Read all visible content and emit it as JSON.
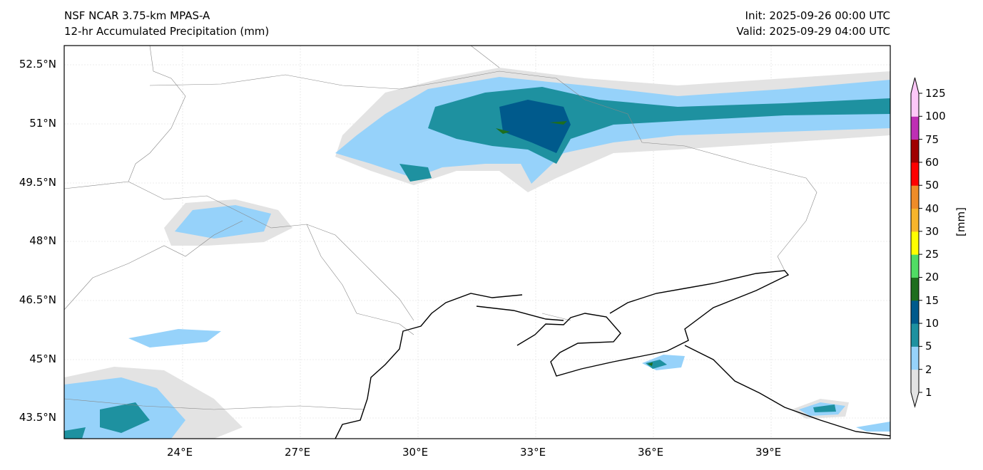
{
  "header": {
    "title_line1": "NSF NCAR 3.75-km MPAS-A",
    "title_line2": "12-hr Accumulated Precipitation (mm)",
    "init": "Init: 2025-09-26 00:00 UTC",
    "valid": "Valid: 2025-09-29 04:00 UTC"
  },
  "map": {
    "lat_ticks": [
      "52.5°N",
      "51°N",
      "49.5°N",
      "48°N",
      "46.5°N",
      "45°N",
      "43.5°N"
    ],
    "lon_ticks": [
      "24°E",
      "27°E",
      "30°E",
      "33°E",
      "36°E",
      "39°E"
    ]
  },
  "colorbar": {
    "label": "[mm]",
    "levels": [
      "1",
      "2",
      "5",
      "10",
      "15",
      "20",
      "25",
      "30",
      "40",
      "50",
      "60",
      "75",
      "100",
      "125"
    ],
    "colors": [
      "#e3e3e3",
      "#96d2fa",
      "#1e91a0",
      "#005a8c",
      "#1e6e1e",
      "#50dc64",
      "#ffff00",
      "#f7b52c",
      "#ef8c28",
      "#ff0000",
      "#a00000",
      "#be2fb4",
      "#fdc8f8"
    ]
  }
}
